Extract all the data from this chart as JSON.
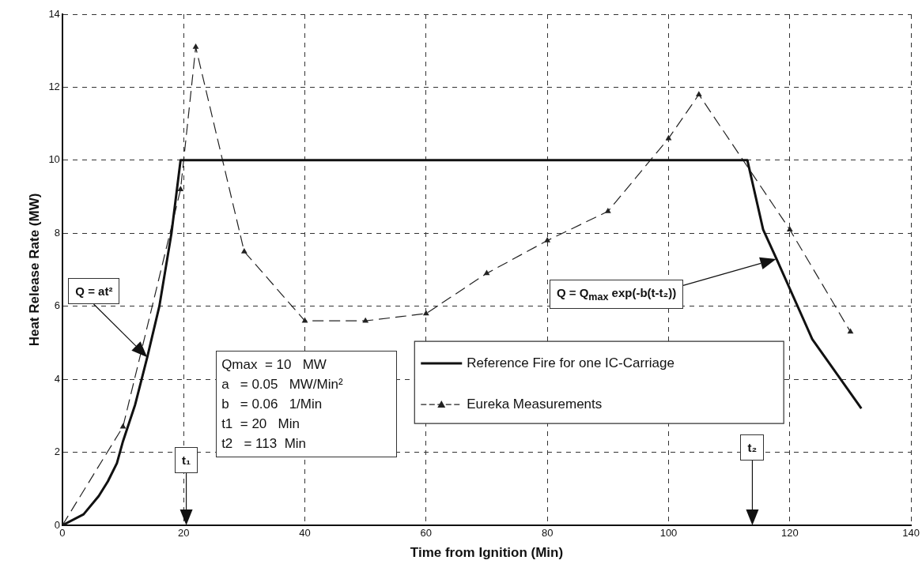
{
  "chart_data": {
    "type": "line",
    "xlabel": "Time from Ignition (Min)",
    "ylabel": "Heat Release Rate (MW)",
    "xlim": [
      0,
      140
    ],
    "xticks": [
      0,
      20,
      40,
      60,
      80,
      100,
      120,
      140
    ],
    "ylim": [
      0,
      14
    ],
    "yticks": [
      0,
      2,
      4,
      6,
      8,
      10,
      12,
      14
    ],
    "grid": true,
    "legend": "bottom right",
    "series": [
      {
        "name": "Reference Fire for one IC-Carriage",
        "color": "#111111",
        "marker": "none",
        "line_style": "solid",
        "x": [
          0,
          3.5,
          6,
          7.5,
          9,
          10,
          12,
          14,
          16,
          18,
          19.5,
          113,
          115.6,
          117.8,
          123.7,
          131.8
        ],
        "values": [
          0,
          0.3,
          0.8,
          1.2,
          1.7,
          2.3,
          3.3,
          4.6,
          6,
          8,
          10,
          10,
          8.1,
          7.3,
          5.1,
          3.2
        ]
      },
      {
        "name": "Eureka Measurements",
        "color": "#222222",
        "marker": "triangle",
        "line_style": "dashed",
        "x": [
          0,
          10,
          19.5,
          22,
          30,
          40,
          50,
          60,
          70,
          80,
          90,
          100,
          105,
          120,
          130
        ],
        "values": [
          0,
          2.7,
          9.2,
          13.1,
          7.5,
          5.6,
          5.6,
          5.8,
          6.9,
          7.8,
          8.6,
          10.6,
          11.8,
          8.1,
          5.3
        ]
      }
    ],
    "annotations": [
      "Q = at²",
      "Q = Q$_{max}$ exp(-b(t-t₂))",
      "t₁",
      "t₂",
      "Qmax  = 10   MW",
      "a   = 0.05   MW/Min²",
      "b   = 0.06   1/Min",
      "t1  = 20   Min",
      "t2   = 113  Min"
    ]
  }
}
